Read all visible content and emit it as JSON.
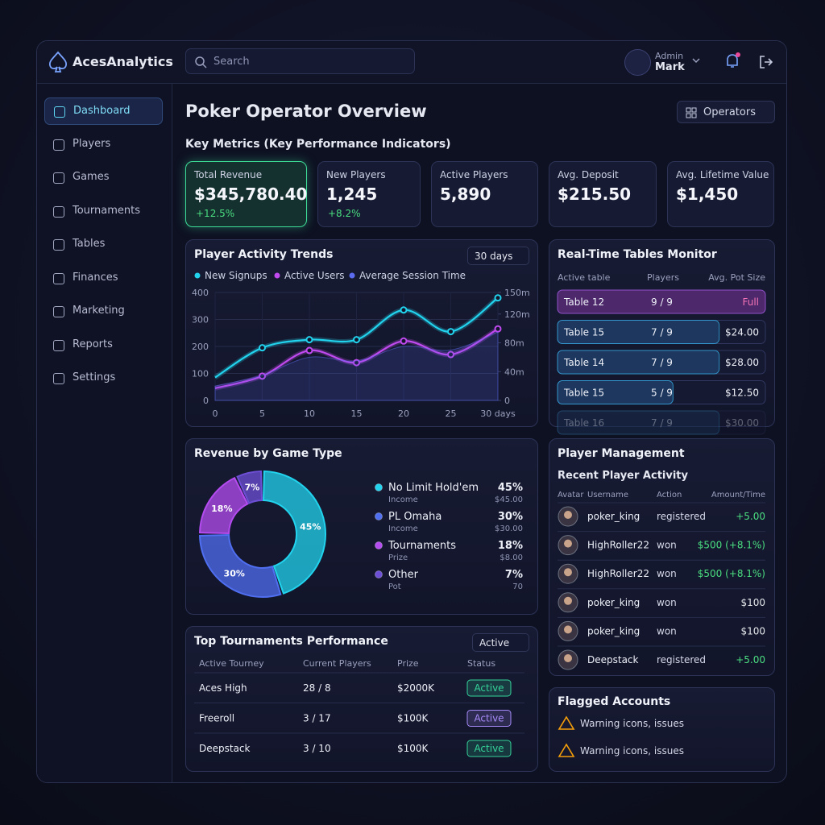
{
  "brand": "AcesAnalytics",
  "search_placeholder": "Search",
  "user": {
    "role": "Admin",
    "name": "Mark"
  },
  "nav": [
    "Dashboard",
    "Players",
    "Games",
    "Tournaments",
    "Tables",
    "Finances",
    "Marketing",
    "Reports",
    "Settings"
  ],
  "page_title": "Poker Operator Overview",
  "operators_button": "Operators",
  "kpi_heading": "Key Metrics (Key Performance Indicators)",
  "kpis": [
    {
      "label": "Total Revenue",
      "value": "$345,780.40",
      "change": "+12.5%"
    },
    {
      "label": "New Players",
      "value": "1,245",
      "change": "+8.2%"
    },
    {
      "label": "Active Players",
      "value": "5,890"
    },
    {
      "label": "Avg. Deposit",
      "value": "$215.50"
    },
    {
      "label": "Avg. Lifetime Value",
      "value": "$1,450"
    }
  ],
  "activity_chart": {
    "type": "line",
    "title": "Player Activity Trends",
    "range_selector": "30 days",
    "x": [
      0,
      5,
      10,
      15,
      20,
      25,
      30
    ],
    "xlim": [
      0,
      30
    ],
    "xticks": [
      0,
      5,
      10,
      15,
      20,
      25,
      {
        "value": 30,
        "label": "30 days"
      }
    ],
    "ylim": [
      0,
      400
    ],
    "yticks": [
      0,
      100,
      200,
      300,
      400
    ],
    "y2lim": [
      0,
      150
    ],
    "y2ticks": [
      0,
      {
        "value": 40,
        "label": "40m"
      },
      {
        "value": 80,
        "label": "80m"
      },
      {
        "value": 120,
        "label": "120m"
      },
      {
        "value": 150,
        "label": "150m"
      }
    ],
    "series": [
      {
        "name": "New Signups",
        "color": "#22d3ee",
        "values": [
          85,
          195,
          225,
          225,
          335,
          255,
          380
        ]
      },
      {
        "name": "Active Users",
        "color": "#c04af0",
        "values": [
          45,
          90,
          185,
          140,
          220,
          170,
          265
        ]
      },
      {
        "name": "Average Session Time",
        "color": "#5b6cf0",
        "axis": "y2",
        "values": [
          20,
          35,
          60,
          55,
          75,
          70,
          95
        ]
      }
    ]
  },
  "tables_monitor": {
    "title": "Real-Time Tables Monitor",
    "columns": [
      "Active table",
      "Players",
      "Avg. Pot Size"
    ],
    "rows": [
      [
        "Table 12",
        "9 / 9",
        "Full"
      ],
      [
        "Table 15",
        "7 / 9",
        "$24.00"
      ],
      [
        "Table 14",
        "7 / 9",
        "$28.00"
      ],
      [
        "Table 15",
        "5 / 9",
        "$12.50"
      ],
      [
        "Table 16",
        "7 / 9",
        "$30.00"
      ]
    ]
  },
  "revenue_chart": {
    "type": "pie",
    "title": "Revenue by Game Type",
    "categories": [
      "No Limit Hold'em",
      "PL Omaha",
      "Tournaments",
      "Other"
    ],
    "values": [
      45,
      30,
      18,
      7
    ],
    "value_labels": [
      "45%",
      "30%",
      "18%",
      "7%"
    ],
    "sublabels": [
      "Income",
      "Income",
      "Prize",
      "Pot"
    ],
    "amounts": [
      "$45.00",
      "$30.00",
      "$8.00",
      "70"
    ],
    "colors": [
      "#22d3ee",
      "#4f6ef0",
      "#b44cf0",
      "#6d4fd6"
    ]
  },
  "tournaments": {
    "title": "Top Tournaments Performance",
    "filter": "Active",
    "columns": [
      "Active Tourney",
      "Current Players",
      "Prize",
      "Status"
    ],
    "rows": [
      {
        "name": "Aces High",
        "players": "28 / 8",
        "prize": "$2000K",
        "status": "Active",
        "status_color": "#34d399"
      },
      {
        "name": "Freeroll",
        "players": "3 / 17",
        "prize": "$100K",
        "status": "Active",
        "status_color": "#a78bfa"
      },
      {
        "name": "Deepstack",
        "players": "3 / 10",
        "prize": "$100K",
        "status": "Active",
        "status_color": "#34d399"
      }
    ]
  },
  "player_management": {
    "title": "Player Management",
    "subtitle": "Recent Player Activity",
    "columns": [
      "Avatar",
      "Username",
      "Action",
      "Amount/Time"
    ],
    "rows": [
      {
        "username": "poker_king",
        "action": "registered",
        "amount": "+5.00",
        "color": "#4ade80"
      },
      {
        "username": "HighRoller22",
        "action": "won",
        "amount": "$500 (+8.1%)",
        "color": "#4ade80"
      },
      {
        "username": "HighRoller22",
        "action": "won",
        "amount": "$500 (+8.1%)",
        "color": "#4ade80"
      },
      {
        "username": "poker_king",
        "action": "won",
        "amount": "$100",
        "color": "#e5e7eb"
      },
      {
        "username": "poker_king",
        "action": "won",
        "amount": "$100",
        "color": "#e5e7eb"
      },
      {
        "username": "Deepstack",
        "action": "registered",
        "amount": "+5.00",
        "color": "#4ade80"
      }
    ]
  },
  "flagged": {
    "title": "Flagged Accounts",
    "items": [
      "Warning icons, issues",
      "Warning icons, issues"
    ]
  }
}
